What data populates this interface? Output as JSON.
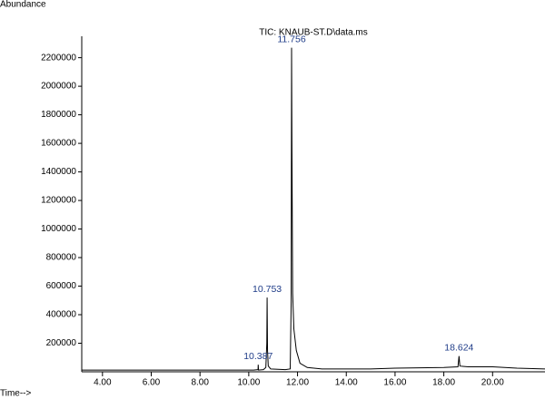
{
  "chart_data": {
    "type": "line",
    "title": "TIC: KNAUB-ST.D\\data.ms",
    "y_label": "Abundance",
    "x_label": "Time-->",
    "x": [
      3.15,
      10.2,
      10.38,
      10.387,
      10.4,
      10.6,
      10.7,
      10.74,
      10.753,
      10.77,
      10.8,
      10.9,
      11.5,
      11.7,
      11.74,
      11.756,
      11.77,
      11.8,
      11.85,
      11.95,
      12.1,
      12.4,
      13.0,
      15.0,
      16.0,
      18.0,
      18.58,
      18.624,
      18.66,
      19.0,
      20.0,
      21.0,
      22.15
    ],
    "series": [
      {
        "name": "TIC",
        "color": "#000000",
        "values": [
          12000,
          12000,
          15000,
          50000,
          12000,
          15000,
          30000,
          200000,
          520000,
          150000,
          40000,
          20000,
          15000,
          20000,
          500000,
          2270000,
          1600000,
          550000,
          300000,
          150000,
          60000,
          30000,
          20000,
          20000,
          25000,
          30000,
          35000,
          110000,
          40000,
          35000,
          35000,
          25000,
          20000
        ]
      }
    ],
    "peaks": [
      10.387,
      10.753,
      11.756,
      18.624
    ],
    "peak_heights": [
      50000,
      520000,
      2270000,
      110000
    ],
    "xlim": [
      3.15,
      22.15
    ],
    "ylim": [
      0,
      2350000
    ],
    "xticks": [
      {
        "value": 4,
        "label": "4.00"
      },
      {
        "value": 6,
        "label": "6.00"
      },
      {
        "value": 8,
        "label": "8.00"
      },
      {
        "value": 10,
        "label": "10.00"
      },
      {
        "value": 12,
        "label": "12.00"
      },
      {
        "value": 14,
        "label": "14.00"
      },
      {
        "value": 16,
        "label": "16.00"
      },
      {
        "value": 18,
        "label": "18.00"
      },
      {
        "value": 20,
        "label": "20.00"
      }
    ],
    "yticks": [
      200000,
      400000,
      600000,
      800000,
      1000000,
      1200000,
      1400000,
      1600000,
      1800000,
      2000000,
      2200000
    ]
  }
}
